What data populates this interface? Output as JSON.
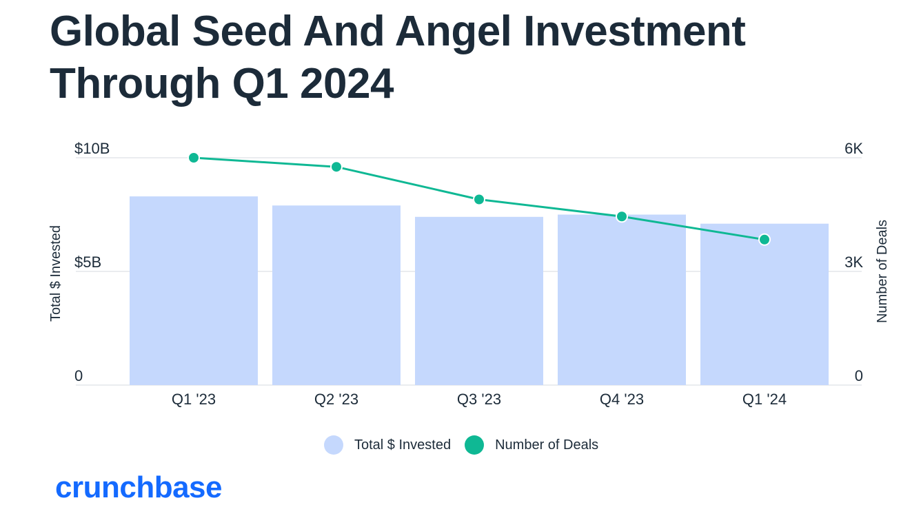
{
  "title": "Global Seed And Angel Investment Through Q1 2024",
  "brand": {
    "name": "crunchbase",
    "color": "#146aff"
  },
  "colors": {
    "bar": "#c5d8fd",
    "line": "#0fb894",
    "text": "#1c2b39",
    "grid": "#e3e6ea"
  },
  "legend": [
    {
      "label": "Total $ Invested",
      "color": "#c5d8fd"
    },
    {
      "label": "Number of Deals",
      "color": "#0fb894"
    }
  ],
  "chart_data": {
    "type": "bar",
    "categories": [
      "Q1 '23",
      "Q2 '23",
      "Q3 '23",
      "Q4 '23",
      "Q1 '24"
    ],
    "series": [
      {
        "name": "Total $ Invested",
        "type": "bar",
        "axis": "left",
        "values": [
          8.3,
          7.9,
          7.4,
          7.5,
          7.1
        ]
      },
      {
        "name": "Number of Deals",
        "type": "line",
        "axis": "right",
        "values": [
          6000,
          5760,
          4900,
          4450,
          3840
        ]
      }
    ],
    "y_left": {
      "label": "Total $ Invested",
      "min": 0,
      "max": 10,
      "ticks": [
        {
          "value": 0,
          "label": "0"
        },
        {
          "value": 5,
          "label": "$5B"
        },
        {
          "value": 10,
          "label": "$10B"
        }
      ]
    },
    "y_right": {
      "label": "Number of Deals",
      "min": 0,
      "max": 6000,
      "ticks": [
        {
          "value": 0,
          "label": "0"
        },
        {
          "value": 3000,
          "label": "3K"
        },
        {
          "value": 6000,
          "label": "6K"
        }
      ]
    },
    "grid": true,
    "legend_position": "bottom"
  }
}
